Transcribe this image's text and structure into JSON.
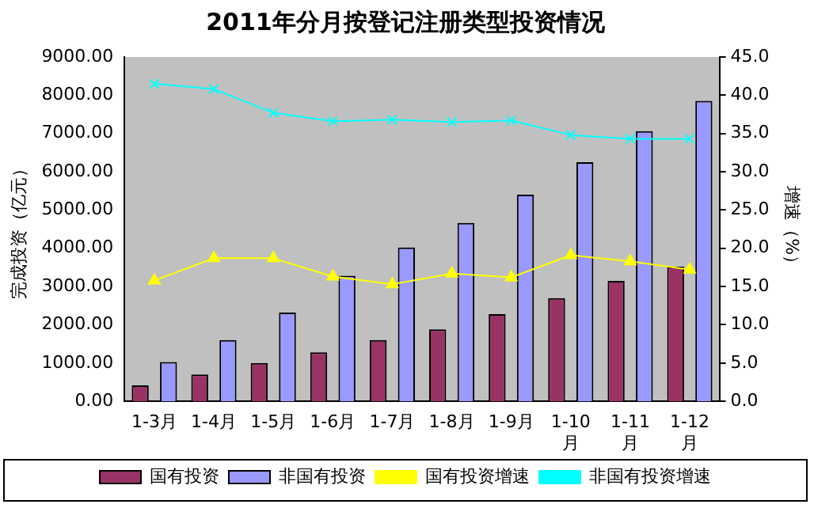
{
  "chart_data": {
    "type": "bar",
    "title": "2011年分月按登记注册类型投资情况",
    "ylabel": "完成投资（亿元）",
    "y2label": "增速（%）",
    "categories": [
      "1-3月",
      "1-4月",
      "1-5月",
      "1-6月",
      "1-7月",
      "1-8月",
      "1-9月",
      "1-10月",
      "1-11月",
      "1-12月"
    ],
    "series": [
      {
        "name": "国有投资",
        "color": "#993366",
        "values": [
          420,
          700,
          1000,
          1280,
          1600,
          1880,
          2280,
          2700,
          3150,
          3520
        ]
      },
      {
        "name": "非国有投资",
        "color": "#9999ff",
        "values": [
          1030,
          1600,
          2320,
          3280,
          4020,
          4660,
          5400,
          6250,
          7060,
          7850
        ]
      },
      {
        "name": "国有投资增速",
        "type": "line",
        "axis": "y2",
        "marker": "triangle",
        "color": "#ffff00",
        "values": [
          15.8,
          18.7,
          18.7,
          16.3,
          15.3,
          16.7,
          16.2,
          19.1,
          18.3,
          17.2
        ]
      },
      {
        "name": "非国有投资增速",
        "type": "line",
        "axis": "y2",
        "marker": "cross",
        "color": "#00ffff",
        "values": [
          41.5,
          40.8,
          37.7,
          36.6,
          36.8,
          36.5,
          36.7,
          34.8,
          34.3,
          34.3
        ]
      }
    ],
    "ylim": [
      0,
      9000
    ],
    "yticks": [
      {
        "value": 0,
        "label": "0.00"
      },
      {
        "value": 1000,
        "label": "1000.00"
      },
      {
        "value": 2000,
        "label": "2000.00"
      },
      {
        "value": 3000,
        "label": "3000.00"
      },
      {
        "value": 4000,
        "label": "4000.00"
      },
      {
        "value": 5000,
        "label": "5000.00"
      },
      {
        "value": 6000,
        "label": "6000.00"
      },
      {
        "value": 7000,
        "label": "7000.00"
      },
      {
        "value": 8000,
        "label": "8000.00"
      },
      {
        "value": 9000,
        "label": "9000.00"
      }
    ],
    "y2lim": [
      0,
      45
    ],
    "y2ticks": [
      {
        "value": 0,
        "label": "0.0"
      },
      {
        "value": 5,
        "label": "5.0"
      },
      {
        "value": 10,
        "label": "10.0"
      },
      {
        "value": 15,
        "label": "15.0"
      },
      {
        "value": 20,
        "label": "20.0"
      },
      {
        "value": 25,
        "label": "25.0"
      },
      {
        "value": 30,
        "label": "30.0"
      },
      {
        "value": 35,
        "label": "35.0"
      },
      {
        "value": 40,
        "label": "40.0"
      },
      {
        "value": 45,
        "label": "45.0"
      }
    ],
    "grid": false,
    "legend": "bottom"
  }
}
